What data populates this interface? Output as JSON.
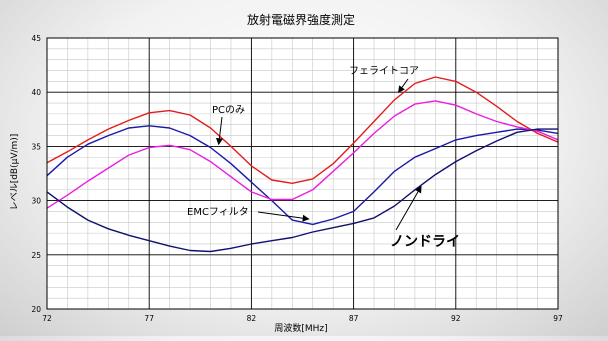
{
  "chart_data": {
    "type": "line",
    "title": "放射電磁界強度測定",
    "xlabel": "周波数[MHz]",
    "ylabel": "レベル[dB(μV/m)]",
    "xlim": [
      72,
      97
    ],
    "ylim": [
      20,
      45
    ],
    "x_ticks": [
      72,
      77,
      82,
      87,
      92,
      97
    ],
    "y_ticks": [
      20,
      25,
      30,
      35,
      40,
      45
    ],
    "x_minor_step": 1,
    "y_minor_step": 1,
    "grid": true,
    "series": [
      {
        "name": "フェライトコア",
        "color": "#e41c1c",
        "x": [
          72,
          73,
          74,
          75,
          76,
          77,
          78,
          79,
          80,
          81,
          82,
          83,
          84,
          85,
          86,
          87,
          88,
          89,
          90,
          91,
          92,
          93,
          94,
          95,
          96,
          97
        ],
        "y": [
          33.5,
          34.5,
          35.6,
          36.6,
          37.4,
          38.1,
          38.3,
          37.9,
          36.7,
          35.0,
          33.2,
          31.9,
          31.6,
          32.0,
          33.4,
          35.3,
          37.3,
          39.3,
          40.8,
          41.4,
          41.0,
          40.0,
          38.7,
          37.3,
          36.2,
          35.4
        ]
      },
      {
        "name": "PCのみ",
        "color": "#1a1aa8",
        "x": [
          72,
          73,
          74,
          75,
          76,
          77,
          78,
          79,
          80,
          81,
          82,
          83,
          84,
          85,
          86,
          87,
          88,
          89,
          90,
          91,
          92,
          93,
          94,
          95,
          96,
          97
        ],
        "y": [
          32.3,
          34.0,
          35.2,
          36.0,
          36.7,
          36.9,
          36.7,
          36.0,
          34.9,
          33.4,
          31.7,
          30.0,
          28.2,
          27.8,
          28.3,
          29.0,
          30.8,
          32.7,
          34.0,
          34.8,
          35.6,
          36.0,
          36.3,
          36.6,
          36.5,
          36.2
        ]
      },
      {
        "name": "EMCフィルタ",
        "color": "#e81ee0",
        "x": [
          72,
          73,
          74,
          75,
          76,
          77,
          78,
          79,
          80,
          81,
          82,
          83,
          84,
          85,
          86,
          87,
          88,
          89,
          90,
          91,
          92,
          93,
          94,
          95,
          96,
          97
        ],
        "y": [
          29.3,
          30.5,
          31.8,
          33.0,
          34.2,
          34.9,
          35.1,
          34.7,
          33.6,
          32.2,
          30.8,
          30.1,
          30.1,
          31.0,
          32.7,
          34.4,
          36.2,
          37.8,
          38.9,
          39.2,
          38.8,
          38.0,
          37.3,
          36.8,
          36.4,
          35.6
        ]
      },
      {
        "name": "ノンドライ",
        "color": "#10106e",
        "x": [
          72,
          73,
          74,
          75,
          76,
          77,
          78,
          79,
          80,
          81,
          82,
          83,
          84,
          85,
          86,
          87,
          88,
          89,
          90,
          91,
          92,
          93,
          94,
          95,
          96,
          97
        ],
        "y": [
          30.8,
          29.4,
          28.2,
          27.4,
          26.8,
          26.3,
          25.8,
          25.4,
          25.3,
          25.6,
          26.0,
          26.3,
          26.6,
          27.1,
          27.5,
          27.9,
          28.4,
          29.5,
          31.0,
          32.4,
          33.6,
          34.6,
          35.5,
          36.3,
          36.6,
          36.6
        ]
      }
    ],
    "annotations": [
      {
        "text": "フェライトコア",
        "series": "フェライトコア",
        "target_x": 89.2,
        "target_y": 40.0,
        "bold": false
      },
      {
        "text": "PCのみ",
        "series": "PCのみ",
        "target_x": 80.4,
        "target_y": 35.2,
        "bold": false
      },
      {
        "text": "EMCフィルタ",
        "series": "EMCフィルタ",
        "target_x": 84.8,
        "target_y": 28.3,
        "bold": false
      },
      {
        "text": "ノンドライ",
        "series": "ノンドライ",
        "target_x": 90.3,
        "target_y": 31.3,
        "bold": true
      }
    ]
  }
}
